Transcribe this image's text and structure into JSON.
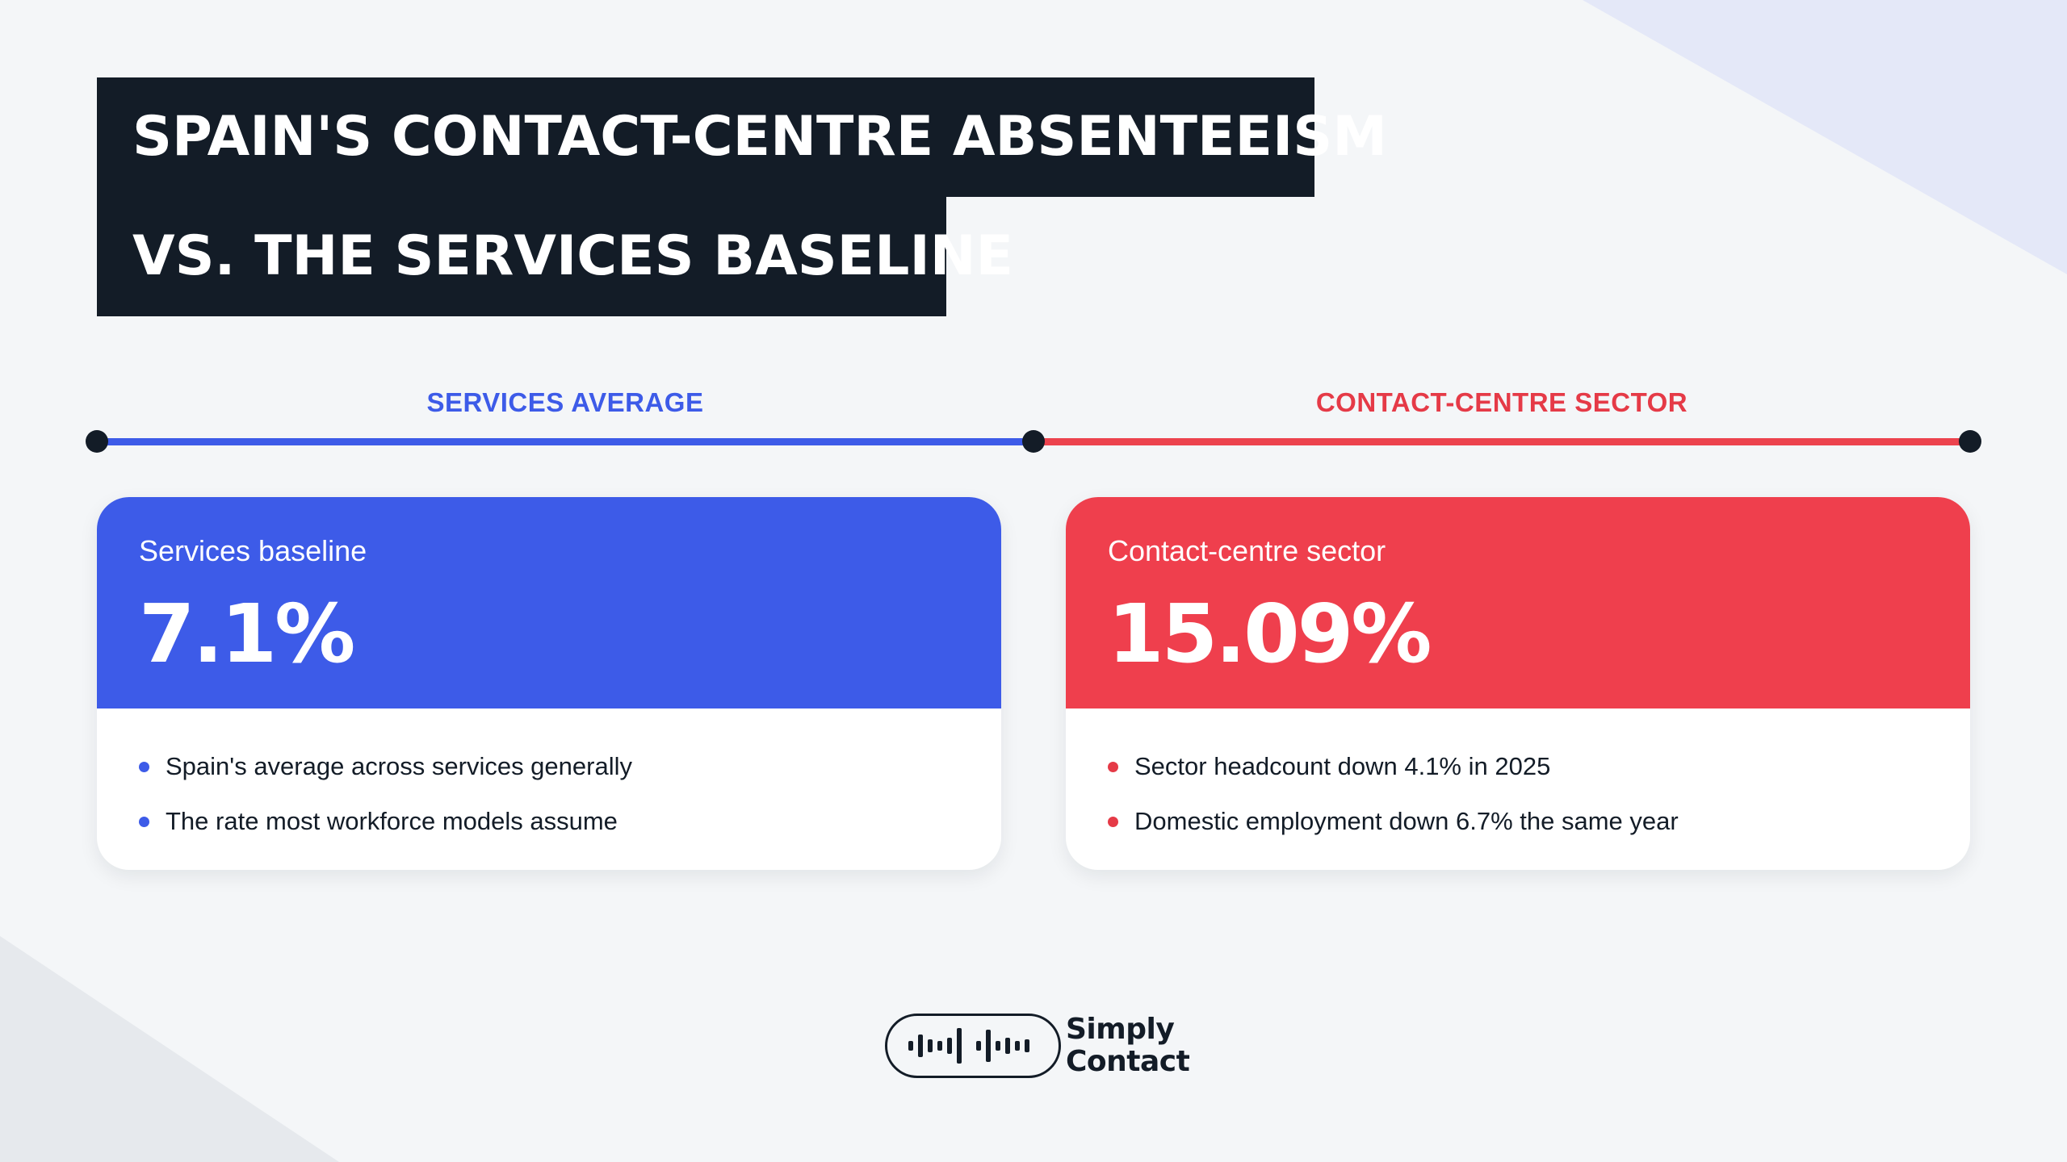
{
  "title": {
    "line1": "SPAIN'S CONTACT-CENTRE ABSENTEEISM",
    "line2": "VS. THE SERVICES BASELINE"
  },
  "timeline": {
    "left_label": "SERVICES AVERAGE",
    "right_label": "CONTACT-CENTRE SECTOR"
  },
  "cards": [
    {
      "kicker": "Services baseline",
      "value": "7.1%",
      "bullets": [
        "Spain's average across services generally",
        "The rate most workforce models assume"
      ]
    },
    {
      "kicker": "Contact-centre sector",
      "value": "15.09%",
      "bullets": [
        "Sector headcount down 4.1% in 2025",
        "Domestic employment down 6.7% the same year"
      ]
    }
  ],
  "logo": {
    "line1": "Simply",
    "line2": "Contact",
    "icon": "sound-wave-icon"
  },
  "colors": {
    "dark": "#131c27",
    "blue": "#3d5be8",
    "red": "#ef3f4d",
    "background": "#f4f6f8"
  }
}
